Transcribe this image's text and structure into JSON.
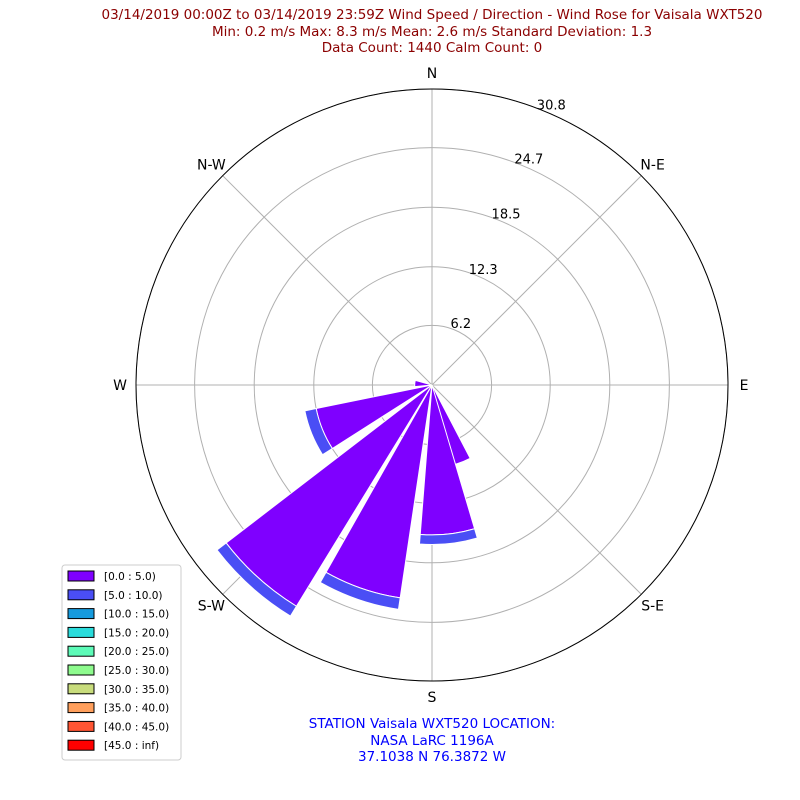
{
  "chart_data": {
    "type": "windrose",
    "title_lines": [
      "03/14/2019 00:00Z to 03/14/2019 23:59Z Wind Speed / Direction - Wind Rose for Vaisala WXT520",
      "Min: 0.2 m/s   Max: 8.3 m/s   Mean: 2.6 m/s  Standard Deviation: 1.3",
      "Data Count: 1440  Calm Count:  0"
    ],
    "station_lines": [
      "STATION Vaisala WXT520 LOCATION:",
      "NASA LaRC 1196A",
      "37.1038 N 76.3872 W"
    ],
    "direction_labels": [
      "N",
      "N-E",
      "E",
      "S-E",
      "S",
      "S-W",
      "W",
      "N-W"
    ],
    "ring_labels": [
      "6.2",
      "12.3",
      "18.5",
      "24.7",
      "30.8"
    ],
    "rmax": 30.8,
    "legend": [
      {
        "label": "[0.0 : 5.0)",
        "color": "#7f00ff"
      },
      {
        "label": "[5.0 : 10.0)",
        "color": "#4a4ef5"
      },
      {
        "label": "[10.0 : 15.0)",
        "color": "#169bde"
      },
      {
        "label": "[15.0 : 20.0)",
        "color": "#2adcdc"
      },
      {
        "label": "[20.0 : 25.0)",
        "color": "#5dfbb8"
      },
      {
        "label": "[25.0 : 30.0)",
        "color": "#8efb8e"
      },
      {
        "label": "[30.0 : 35.0)",
        "color": "#c8dc7c"
      },
      {
        "label": "[35.0 : 40.0)",
        "color": "#ff9f5c"
      },
      {
        "label": "[40.0 : 45.0)",
        "color": "#ff5533"
      },
      {
        "label": "[45.0 : inf)",
        "color": "#ff0000"
      }
    ],
    "sectors": [
      {
        "direction_deg": 163,
        "bins": [
          8.6,
          0
        ]
      },
      {
        "direction_deg": 174,
        "bins": [
          15.6,
          1.0
        ]
      },
      {
        "direction_deg": 199,
        "bins": [
          22.4,
          1.2
        ]
      },
      {
        "direction_deg": 222,
        "bins": [
          27.0,
          1.2
        ]
      },
      {
        "direction_deg": 248,
        "bins": [
          12.3,
          1.2
        ]
      },
      {
        "direction_deg": 275,
        "bins": [
          1.8,
          0
        ]
      }
    ]
  }
}
